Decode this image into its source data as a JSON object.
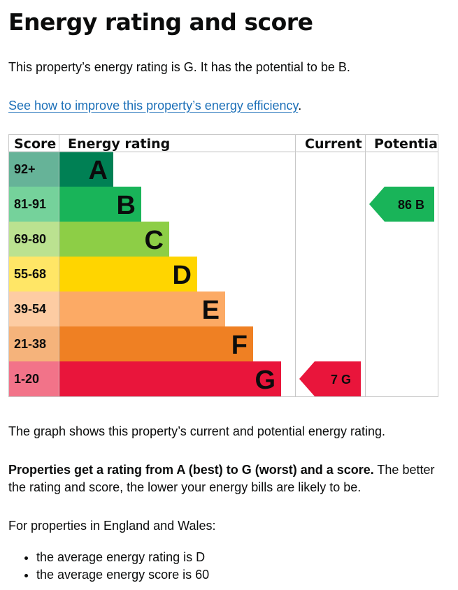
{
  "heading": "Energy rating and score",
  "intro": "This property’s energy rating is G. It has the potential to be B.",
  "improve_link": "See how to improve this property’s energy efficiency",
  "improve_link_suffix": ".",
  "chart_data": {
    "type": "table",
    "headers": [
      "Score",
      "Energy rating",
      "Current",
      "Potential"
    ],
    "bands": [
      {
        "score": "92+",
        "letter": "A",
        "color": "#008054",
        "score_bg": "#66b398"
      },
      {
        "score": "81-91",
        "letter": "B",
        "color": "#19b459",
        "score_bg": "#75d29b"
      },
      {
        "score": "69-80",
        "letter": "C",
        "color": "#8dce46",
        "score_bg": "#bbe290"
      },
      {
        "score": "55-68",
        "letter": "D",
        "color": "#ffd500",
        "score_bg": "#ffe666"
      },
      {
        "score": "39-54",
        "letter": "E",
        "color": "#fcaa65",
        "score_bg": "#fdcca3"
      },
      {
        "score": "21-38",
        "letter": "F",
        "color": "#ef8023",
        "score_bg": "#f5b37b"
      },
      {
        "score": "1-20",
        "letter": "G",
        "color": "#e9153b",
        "score_bg": "#f27389"
      }
    ],
    "current": {
      "score": 7,
      "letter": "G",
      "label": "7 G",
      "color": "#e9153b"
    },
    "potential": {
      "score": 86,
      "letter": "B",
      "label": "86 B",
      "color": "#19b459"
    }
  },
  "graph_text": "The graph shows this property’s current and potential energy rating.",
  "rating_bold": "Properties get a rating from A (best) to G (worst) and a score.",
  "rating_rest": " The better the rating and score, the lower your energy bills are likely to be.",
  "england_wales": "For properties in England and Wales:",
  "stats": [
    "the average energy rating is D",
    "the average energy score is 60"
  ]
}
